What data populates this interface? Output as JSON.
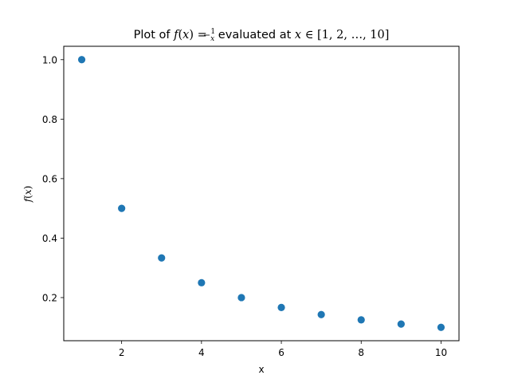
{
  "chart_data": {
    "type": "scatter",
    "title": "Plot of f(x) = 1/x evaluated at x ∈ [1, 2, …, 10]",
    "title_parts": {
      "prefix": "Plot of ",
      "func": "f",
      "open": "(",
      "var": "x",
      "close": ")",
      "eq": " = ",
      "frac_num": "1",
      "frac_den": "x",
      "middle": " evaluated at ",
      "var2": "x",
      "in": " ∈ ",
      "set": "[1, 2, …, 10]"
    },
    "xlabel": "x",
    "ylabel": "f(x)",
    "ylabel_parts": {
      "func": "f",
      "open": "(",
      "var": "x",
      "close": ")"
    },
    "x": [
      1,
      2,
      3,
      4,
      5,
      6,
      7,
      8,
      9,
      10
    ],
    "y": [
      1.0,
      0.5,
      0.3333,
      0.25,
      0.2,
      0.1667,
      0.1429,
      0.125,
      0.1111,
      0.1
    ],
    "xlim": [
      0.55,
      10.45
    ],
    "ylim": [
      0.055,
      1.045
    ],
    "xticks": [
      2,
      4,
      6,
      8,
      10
    ],
    "xtick_labels": [
      "2",
      "4",
      "6",
      "8",
      "10"
    ],
    "yticks": [
      0.2,
      0.4,
      0.6,
      0.8,
      1.0
    ],
    "ytick_labels": [
      "0.2",
      "0.4",
      "0.6",
      "0.8",
      "1.0"
    ],
    "grid": false,
    "marker_color": "#1f77b4"
  }
}
